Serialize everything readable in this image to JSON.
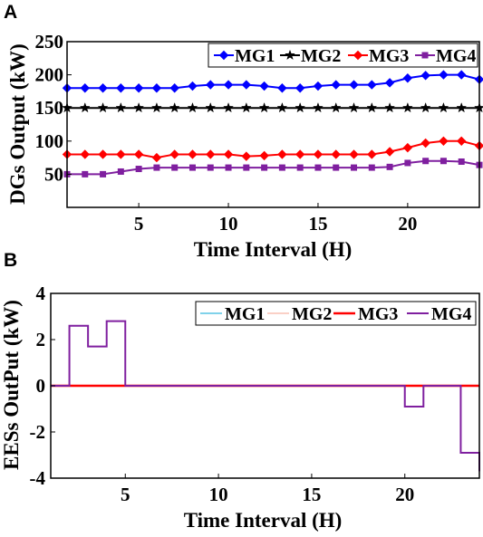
{
  "chart_data": [
    {
      "panel_label": "A",
      "type": "line",
      "xlabel": "Time Interval (H)",
      "ylabel": "DGs Output (kW)",
      "xlim": [
        1,
        24
      ],
      "ylim": [
        0,
        250
      ],
      "xticks": [
        5,
        10,
        15,
        20
      ],
      "yticks": [
        50,
        100,
        150,
        200,
        250
      ],
      "grid": false,
      "legend_position": "top-right",
      "x": [
        1,
        2,
        3,
        4,
        5,
        6,
        7,
        8,
        9,
        10,
        11,
        12,
        13,
        14,
        15,
        16,
        17,
        18,
        19,
        20,
        21,
        22,
        23,
        24
      ],
      "series": [
        {
          "name": "MG1",
          "color": "#0000ff",
          "marker": "diamond",
          "values": [
            180,
            180,
            180,
            180,
            180,
            180,
            180,
            183,
            185,
            185,
            185,
            183,
            180,
            180,
            183,
            185,
            185,
            185,
            188,
            195,
            199,
            200,
            200,
            193
          ]
        },
        {
          "name": "MG2",
          "color": "#000000",
          "marker": "star",
          "values": [
            150,
            150,
            150,
            150,
            150,
            150,
            150,
            150,
            150,
            150,
            150,
            150,
            150,
            150,
            150,
            150,
            150,
            150,
            150,
            150,
            150,
            150,
            150,
            150
          ]
        },
        {
          "name": "MG3",
          "color": "#ff0000",
          "marker": "diamond",
          "values": [
            80,
            80,
            80,
            80,
            80,
            75,
            80,
            80,
            80,
            80,
            77,
            78,
            80,
            80,
            80,
            80,
            80,
            80,
            84,
            90,
            97,
            100,
            100,
            93
          ]
        },
        {
          "name": "MG4",
          "color": "#7f1f9f",
          "marker": "square",
          "values": [
            50,
            50,
            50,
            54,
            58,
            60,
            60,
            60,
            60,
            60,
            60,
            60,
            60,
            60,
            60,
            60,
            60,
            60,
            61,
            67,
            70,
            70,
            69,
            64
          ]
        }
      ]
    },
    {
      "panel_label": "B",
      "type": "line",
      "step": true,
      "xlabel": "Time Interval (H)",
      "ylabel": "EESs OutPut (kW)",
      "xlim": [
        1,
        24
      ],
      "ylim": [
        -4,
        4
      ],
      "xticks": [
        5,
        10,
        15,
        20
      ],
      "yticks": [
        -4,
        -2,
        0,
        2,
        4
      ],
      "grid": false,
      "legend_position": "top-right",
      "x": [
        1,
        2,
        3,
        4,
        5,
        6,
        7,
        8,
        9,
        10,
        11,
        12,
        13,
        14,
        15,
        16,
        17,
        18,
        19,
        20,
        21,
        22,
        23,
        24
      ],
      "series": [
        {
          "name": "MG1",
          "color": "#00a6d6",
          "width": 1,
          "values": [
            0,
            0,
            0,
            0,
            0,
            0,
            0,
            0,
            0,
            0,
            0,
            0,
            0,
            0,
            0,
            0,
            0,
            0,
            0,
            0,
            0,
            0,
            0,
            0
          ]
        },
        {
          "name": "MG2",
          "color": "#f4a28c",
          "width": 1,
          "values": [
            0,
            0,
            0,
            0,
            0,
            0,
            0,
            0,
            0,
            0,
            0,
            0,
            0,
            0,
            0,
            0,
            0,
            0,
            0,
            0,
            0,
            0,
            0,
            0
          ]
        },
        {
          "name": "MG3",
          "color": "#ff0000",
          "width": 2.5,
          "values": [
            0,
            0,
            0,
            0,
            0,
            0,
            0,
            0,
            0,
            0,
            0,
            0,
            0,
            0,
            0,
            0,
            0,
            0,
            0,
            0,
            0,
            0,
            0,
            0
          ]
        },
        {
          "name": "MG4",
          "color": "#7f1f9f",
          "width": 2,
          "values": [
            0,
            2.6,
            1.7,
            2.8,
            0,
            0,
            0,
            0,
            0,
            0,
            0,
            0,
            0,
            0,
            0,
            0,
            0,
            0,
            0,
            -0.9,
            0,
            0,
            -2.9,
            -3.7
          ]
        }
      ]
    }
  ]
}
